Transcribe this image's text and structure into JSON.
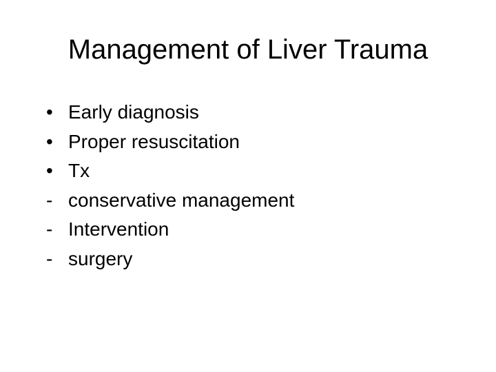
{
  "slide": {
    "title": "Management of Liver Trauma",
    "items": [
      {
        "bullet": "•",
        "text": "Early diagnosis"
      },
      {
        "bullet": "•",
        "text": "Proper resuscitation"
      },
      {
        "bullet": "•",
        "text": "Tx"
      },
      {
        "bullet": "-",
        "text": "conservative management"
      },
      {
        "bullet": "-",
        "text": "Intervention"
      },
      {
        "bullet": "-",
        "text": "surgery"
      }
    ],
    "style": {
      "background_color": "#ffffff",
      "text_color": "#000000",
      "title_fontsize": 40,
      "body_fontsize": 28,
      "font_family": "Arial"
    }
  }
}
